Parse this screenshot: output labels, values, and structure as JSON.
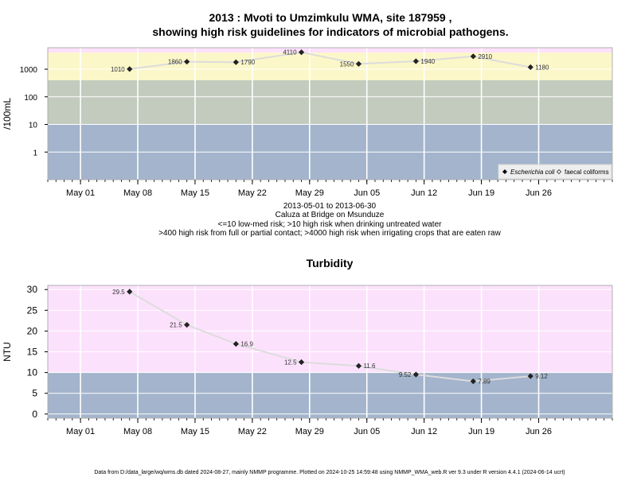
{
  "header": {
    "title_line1": "2013 : Mvoti to Umzimkulu WMA, site 187959 ,",
    "title_line2": "showing high risk guidelines for indicators of microbial pathogens."
  },
  "subtitle": {
    "date_range": "2013-05-01 to 2013-06-30",
    "site_name": "Caluza at Bridge on Msunduze",
    "guideline1": "<=10 low-med risk; >10 high risk when drinking untreated water",
    "guideline2": ">400 high risk from full or partial contact; >4000 high risk when irrigating crops that are eaten raw"
  },
  "footer": {
    "text": "Data from D:/data_large/wq/wms.db dated 2024-08-27, mainly NMMP programme. Plotted on 2024-10-25 14:59:48 using NMMP_WMA_web.R ver 9.3 under R version 4.4.1 (2024-06-14 ucrt)"
  },
  "colors": {
    "band_blue": "#a3b4cc",
    "band_grey": "#c2cbbd",
    "band_yellow": "#fcf7c8",
    "band_pink": "#fce1fc",
    "line": "#dcdcdc",
    "grid": "#ffffff"
  },
  "chart_data": [
    {
      "type": "line",
      "title": "",
      "ylabel": "/100mL",
      "y_scale": "log10",
      "ylim": [
        0.1,
        6000
      ],
      "y_ticks": [
        1,
        10,
        100,
        1000
      ],
      "y_tick_labels": [
        "1",
        "10",
        "100",
        "1000"
      ],
      "x_range": [
        "2013-04-27",
        "2013-07-05"
      ],
      "x_ticks": [
        "2013-05-01",
        "2013-05-08",
        "2013-05-15",
        "2013-05-22",
        "2013-05-29",
        "2013-06-05",
        "2013-06-12",
        "2013-06-19",
        "2013-06-26"
      ],
      "x_tick_labels": [
        "May 01",
        "May 08",
        "May 15",
        "May 22",
        "May 29",
        "Jun 05",
        "Jun 12",
        "Jun 19",
        "Jun 26"
      ],
      "bands": [
        {
          "from": 0.1,
          "to": 10,
          "color": "#a3b4cc"
        },
        {
          "from": 10,
          "to": 400,
          "color": "#c2cbbd"
        },
        {
          "from": 400,
          "to": 4000,
          "color": "#fcf7c8"
        },
        {
          "from": 4000,
          "to": 6000,
          "color": "#fce1fc"
        }
      ],
      "legend_position": "bottom-right",
      "legend": [
        {
          "label": "Escherichia coli",
          "marker": "filled-diamond",
          "italic": true
        },
        {
          "label": "faecal coliforms",
          "marker": "open-diamond",
          "italic": false
        }
      ],
      "series": [
        {
          "name": "Escherichia coli",
          "x": [
            "2013-05-07",
            "2013-05-14",
            "2013-05-20",
            "2013-05-28",
            "2013-06-04",
            "2013-06-11",
            "2013-06-18",
            "2013-06-25"
          ],
          "y": [
            1010,
            1860,
            1790,
            4110,
            1550,
            1940,
            2910,
            1180
          ],
          "labels": [
            "1010",
            "1860",
            "1790",
            "4110",
            "1550",
            "1940",
            "2910",
            "1180"
          ],
          "label_side": [
            "left",
            "left",
            "right",
            "left",
            "left",
            "right",
            "right",
            "right"
          ]
        }
      ]
    },
    {
      "type": "line",
      "title": "Turbidity",
      "ylabel": "NTU",
      "y_scale": "linear",
      "ylim": [
        -1,
        31
      ],
      "y_ticks": [
        0,
        5,
        10,
        15,
        20,
        25,
        30
      ],
      "y_tick_labels": [
        "0",
        "5",
        "10",
        "15",
        "20",
        "25",
        "30"
      ],
      "x_range": [
        "2013-04-27",
        "2013-07-05"
      ],
      "x_ticks": [
        "2013-05-01",
        "2013-05-08",
        "2013-05-15",
        "2013-05-22",
        "2013-05-29",
        "2013-06-05",
        "2013-06-12",
        "2013-06-19",
        "2013-06-26"
      ],
      "x_tick_labels": [
        "May 01",
        "May 08",
        "May 15",
        "May 22",
        "May 29",
        "Jun 05",
        "Jun 12",
        "Jun 19",
        "Jun 26"
      ],
      "bands": [
        {
          "from": -1,
          "to": 10,
          "color": "#a3b4cc"
        },
        {
          "from": 10,
          "to": 31,
          "color": "#fce1fc"
        }
      ],
      "series": [
        {
          "name": "",
          "x": [
            "2013-05-07",
            "2013-05-14",
            "2013-05-20",
            "2013-05-28",
            "2013-06-04",
            "2013-06-11",
            "2013-06-18",
            "2013-06-25"
          ],
          "y": [
            29.5,
            21.5,
            16.9,
            12.5,
            11.6,
            9.52,
            7.89,
            9.12
          ],
          "labels": [
            "29.5",
            "21.5",
            "16.9",
            "12.5",
            "11.6",
            "9.52",
            "7.89",
            "9.12"
          ],
          "label_side": [
            "left",
            "left",
            "right",
            "left",
            "right",
            "left",
            "right",
            "right"
          ]
        }
      ]
    }
  ]
}
